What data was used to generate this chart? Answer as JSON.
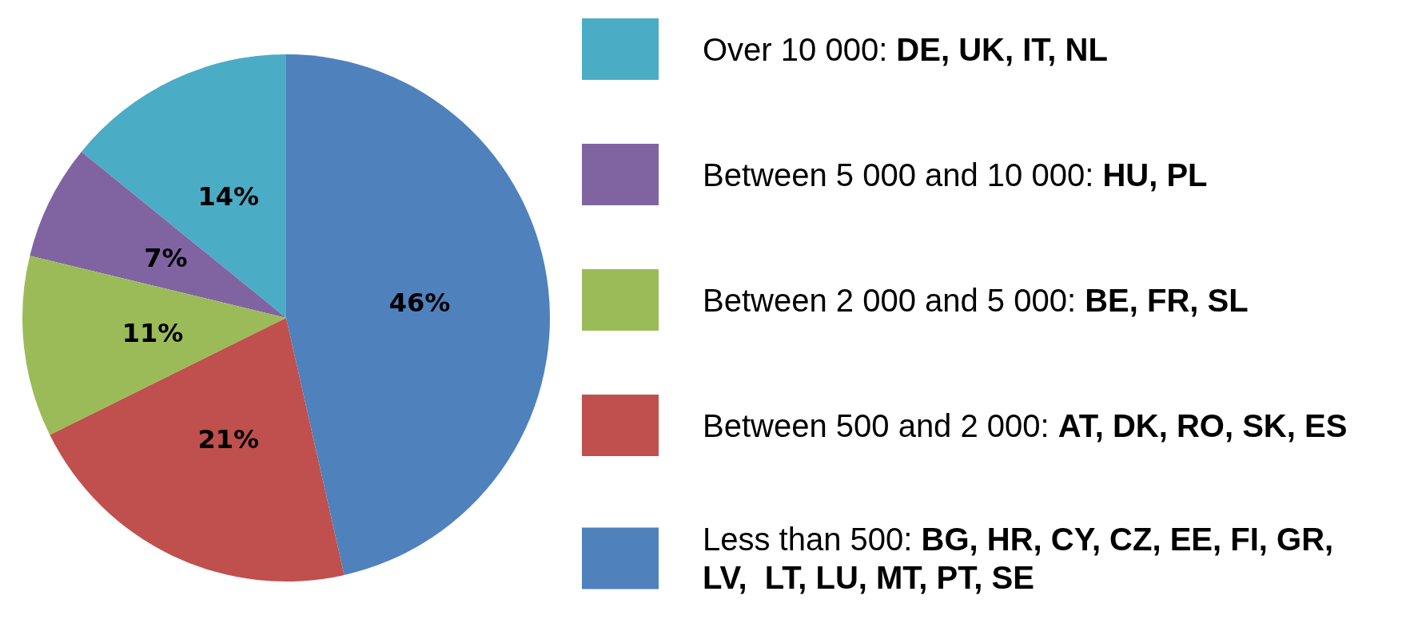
{
  "chart_data": {
    "type": "pie",
    "categories": [
      "Over 10 000: DE, UK, IT, NL",
      "Between 5 000 and 10 000: HU, PL",
      "Between 2 000 and 5 000: BE, FR, SL",
      "Between 500 and 2 000: AT, DK, RO, SK, ES",
      "Less than 500: BG, HR, CY, CZ, EE, FI, GR, LV,  LT, LU, MT, PT, SE"
    ],
    "values": [
      14,
      7,
      11,
      21,
      46
    ],
    "colors": [
      "#4bacc6",
      "#8064a2",
      "#9bbb59",
      "#c0504d",
      "#4f81bd"
    ],
    "value_labels": [
      "14%",
      "7%",
      "11%",
      "21%",
      "46%"
    ],
    "legend": "right"
  }
}
